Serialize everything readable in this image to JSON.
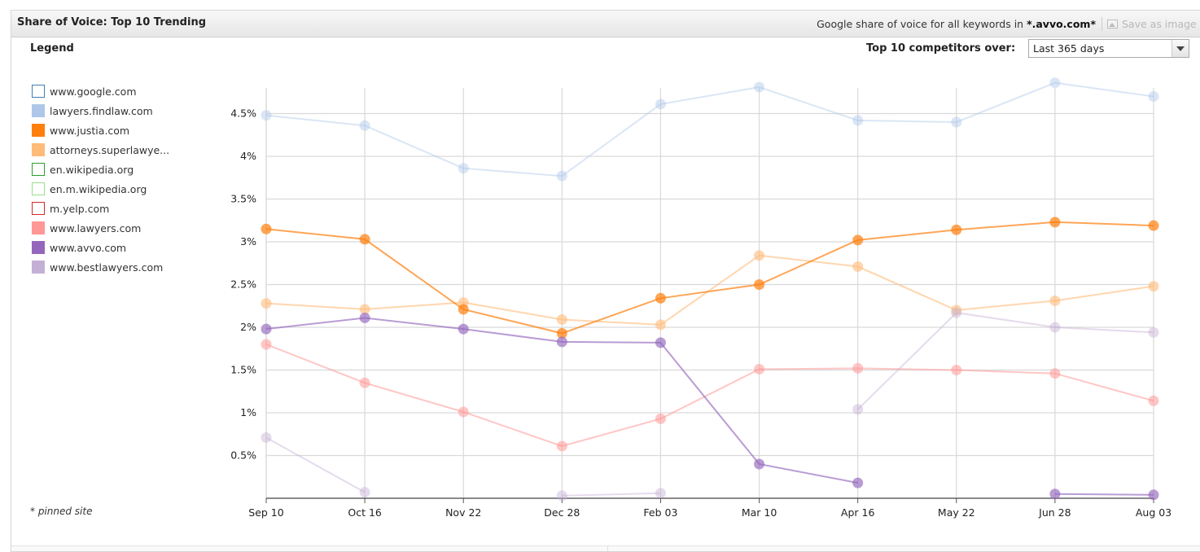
{
  "panel": {
    "title": "Share of Voice: Top 10 Trending",
    "sov_prefix": "Google share of voice for all keywords in ",
    "sov_domain": "*.avvo.com*",
    "save_label": "Save as image"
  },
  "legend": {
    "heading": "Legend",
    "items": [
      {
        "label": "www.google.com",
        "color": "#3f7fb6",
        "hollow": true
      },
      {
        "label": "lawyers.findlaw.com",
        "color": "#aec7e8",
        "hollow": false
      },
      {
        "label": "www.justia.com",
        "color": "#ff7f0e",
        "hollow": false
      },
      {
        "label": "attorneys.superlawye...",
        "color": "#ffbb78",
        "hollow": false
      },
      {
        "label": "en.wikipedia.org",
        "color": "#2ca02c",
        "hollow": true
      },
      {
        "label": "en.m.wikipedia.org",
        "color": "#98df8a",
        "hollow": true
      },
      {
        "label": "m.yelp.com",
        "color": "#d62728",
        "hollow": true
      },
      {
        "label": "www.lawyers.com",
        "color": "#ff9896",
        "hollow": false
      },
      {
        "label": "www.avvo.com",
        "color": "#9467bd",
        "hollow": false
      },
      {
        "label": "www.bestlawyers.com",
        "color": "#c5b0d5",
        "hollow": false
      }
    ],
    "pinned_note": "* pinned site"
  },
  "controls": {
    "competitors_label": "Top 10 competitors over:",
    "period_value": "Last 365 days"
  },
  "chart_data": {
    "type": "line",
    "categories": [
      "Sep 10",
      "Oct 16",
      "Nov 22",
      "Dec 28",
      "Feb 03",
      "Mar 10",
      "Apr 16",
      "May 22",
      "Jun 28",
      "Aug 03"
    ],
    "ylim": [
      0,
      4.8
    ],
    "yticks": [
      0.5,
      1,
      1.5,
      2,
      2.5,
      3,
      3.5,
      4,
      4.5
    ],
    "ytick_labels": [
      "0.5%",
      "1%",
      "1.5%",
      "2%",
      "2.5%",
      "3%",
      "3.5%",
      "4%",
      "4.5%"
    ],
    "grid": true,
    "series": [
      {
        "name": "lawyers.findlaw.com",
        "color": "#aec7e8",
        "opacity": 0.45,
        "values": [
          4.48,
          4.36,
          3.86,
          3.77,
          4.61,
          4.81,
          4.42,
          4.4,
          4.86,
          4.7
        ]
      },
      {
        "name": "attorneys.superlawye...",
        "color": "#ffbb78",
        "opacity": 0.6,
        "values": [
          2.28,
          2.21,
          2.29,
          2.09,
          2.03,
          2.84,
          2.71,
          2.2,
          2.31,
          2.48
        ]
      },
      {
        "name": "www.bestlawyers.com",
        "color": "#c5b0d5",
        "opacity": 0.45,
        "values": [
          0.71,
          0.07,
          null,
          0.03,
          0.06,
          null,
          1.04,
          2.17,
          2.0,
          1.94
        ]
      },
      {
        "name": "www.lawyers.com",
        "color": "#ff9896",
        "opacity": 0.55,
        "values": [
          1.8,
          1.35,
          1.01,
          0.61,
          0.93,
          1.51,
          1.52,
          1.5,
          1.46,
          1.14
        ]
      },
      {
        "name": "www.justia.com",
        "color": "#ff7f0e",
        "opacity": 0.7,
        "values": [
          3.15,
          3.03,
          2.21,
          1.93,
          2.34,
          2.5,
          3.02,
          3.14,
          3.23,
          3.19
        ]
      },
      {
        "name": "www.avvo.com",
        "color": "#9467bd",
        "opacity": 0.65,
        "values": [
          1.98,
          2.11,
          1.98,
          1.83,
          1.82,
          0.4,
          0.18,
          null,
          0.05,
          0.04
        ]
      }
    ]
  }
}
